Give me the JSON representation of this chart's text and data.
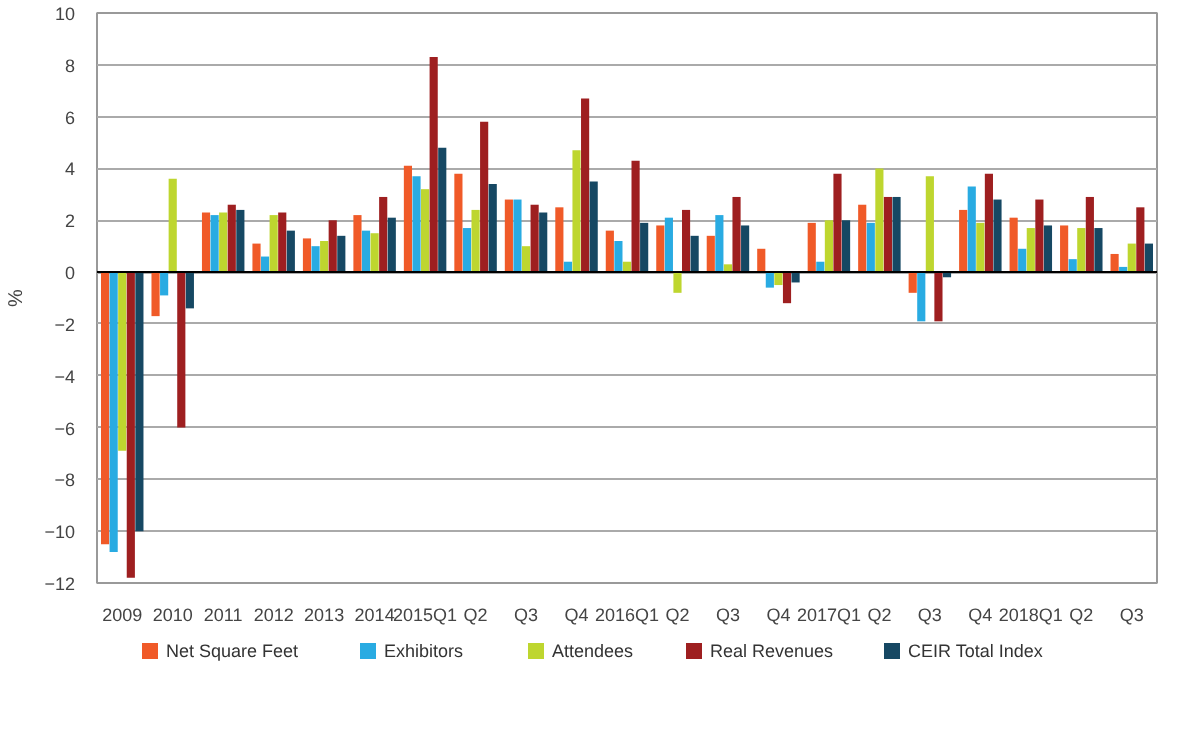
{
  "chart_data": {
    "type": "bar",
    "ylabel": "%",
    "categories": [
      "2009",
      "2010",
      "2011",
      "2012",
      "2013",
      "2014",
      "2015Q1",
      "Q2",
      "Q3",
      "Q4",
      "2016Q1",
      "Q2",
      "Q3",
      "Q4",
      "2017Q1",
      "Q2",
      "Q3",
      "Q4",
      "2018Q1",
      "Q2",
      "Q3"
    ],
    "series": [
      {
        "name": "Net Square Feet",
        "color": "#f05a28",
        "values": [
          -10.5,
          -1.7,
          2.3,
          1.1,
          1.3,
          2.2,
          4.1,
          3.8,
          2.8,
          2.5,
          1.6,
          1.8,
          1.4,
          0.9,
          1.9,
          2.6,
          -0.8,
          2.4,
          2.1,
          1.8,
          0.7
        ]
      },
      {
        "name": "Exhibitors",
        "color": "#29abe2",
        "values": [
          -10.8,
          -0.9,
          2.2,
          0.6,
          1.0,
          1.6,
          3.7,
          1.7,
          2.8,
          0.4,
          1.2,
          2.1,
          2.2,
          -0.6,
          0.4,
          1.9,
          -1.9,
          3.3,
          0.9,
          0.5,
          0.2
        ]
      },
      {
        "name": "Attendees",
        "color": "#bed62f",
        "values": [
          -6.9,
          3.6,
          2.3,
          2.2,
          1.2,
          1.5,
          3.2,
          2.4,
          1.0,
          4.7,
          0.4,
          -0.8,
          0.3,
          -0.5,
          2.0,
          4.0,
          3.7,
          1.9,
          1.7,
          1.7,
          1.1
        ]
      },
      {
        "name": "Real Revenues",
        "color": "#9e1f20",
        "values": [
          -11.8,
          -6.0,
          2.6,
          2.3,
          2.0,
          2.9,
          8.3,
          5.8,
          2.6,
          6.7,
          4.3,
          2.4,
          2.9,
          -1.2,
          3.8,
          2.9,
          -1.9,
          3.8,
          2.8,
          2.9,
          2.5
        ]
      },
      {
        "name": "CEIR Total Index",
        "color": "#164863",
        "values": [
          -10.0,
          -1.4,
          2.4,
          1.6,
          1.4,
          2.1,
          4.8,
          3.4,
          2.3,
          3.5,
          1.9,
          1.4,
          1.8,
          -0.4,
          2.0,
          2.9,
          -0.2,
          2.8,
          1.8,
          1.7,
          1.1
        ]
      }
    ],
    "ylim": [
      -12,
      10
    ],
    "yticks": [
      -12,
      -10,
      -8,
      -6,
      -4,
      -2,
      0,
      2,
      4,
      6,
      8,
      10
    ],
    "grid": "y",
    "legend": "bottom"
  }
}
